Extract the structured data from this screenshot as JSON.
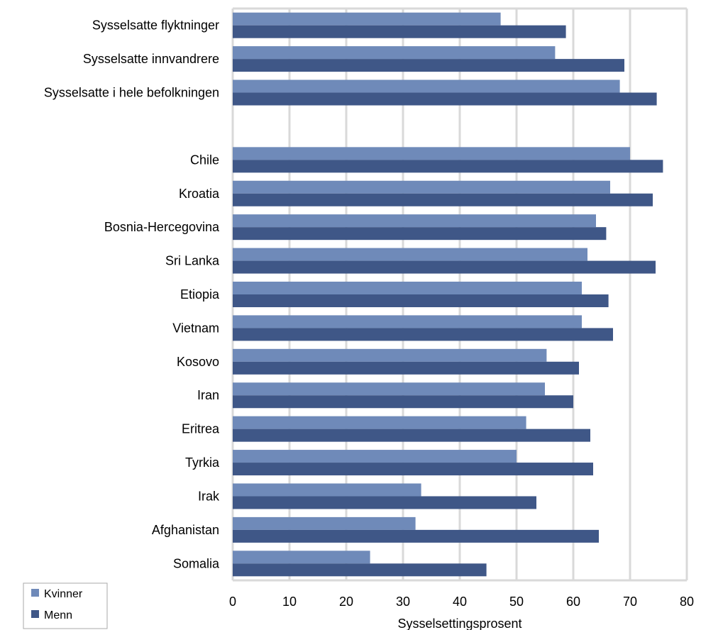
{
  "chart_data": {
    "type": "bar",
    "orientation": "horizontal",
    "categories": [
      "Sysselsatte flyktninger",
      "Sysselsatte innvandrere",
      "Sysselsatte i hele befolkningen",
      "",
      "Chile",
      "Kroatia",
      "Bosnia-Hercegovina",
      "Sri Lanka",
      "Etiopia",
      "Vietnam",
      "Kosovo",
      "Iran",
      "Eritrea",
      "Tyrkia",
      "Irak",
      "Afghanistan",
      "Somalia"
    ],
    "series": [
      {
        "name": "Kvinner",
        "color": "#6f8ab9",
        "values": [
          47.2,
          56.8,
          68.2,
          null,
          70.0,
          66.5,
          64.0,
          62.5,
          61.5,
          61.5,
          55.3,
          55.0,
          51.7,
          50.0,
          33.2,
          32.2,
          24.2
        ]
      },
      {
        "name": "Menn",
        "color": "#3f5787",
        "values": [
          58.7,
          69.0,
          74.7,
          null,
          75.8,
          74.0,
          65.8,
          74.5,
          66.2,
          67.0,
          61.0,
          60.0,
          63.0,
          63.5,
          53.5,
          64.5,
          44.7
        ]
      }
    ],
    "xlabel": "Sysselsettingsprosent",
    "xlim": [
      0,
      80
    ],
    "xticks": [
      0,
      10,
      20,
      30,
      40,
      50,
      60,
      70,
      80
    ],
    "grid": true,
    "legend": "bottom-left"
  }
}
